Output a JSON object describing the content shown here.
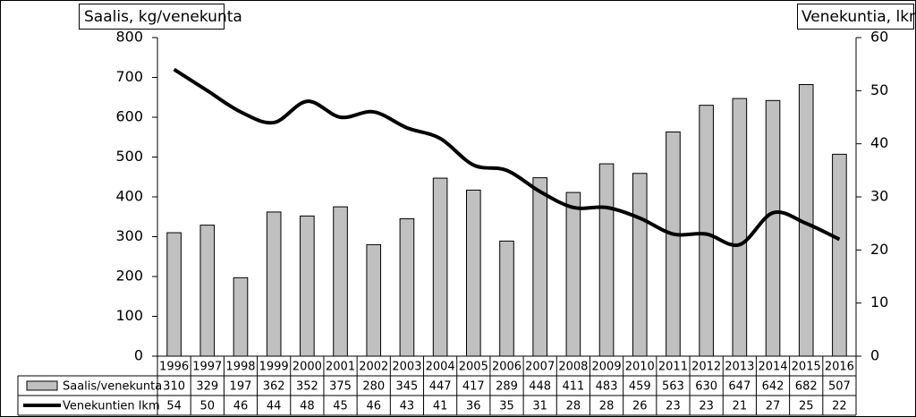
{
  "chart_data": {
    "type": "bar",
    "y_label": "Saalis, kg/venekunta",
    "y2_label": "Venekuntia, lkm",
    "categories": [
      "1996",
      "1997",
      "1998",
      "1999",
      "2000",
      "2001",
      "2002",
      "2003",
      "2004",
      "2005",
      "2006",
      "2007",
      "2008",
      "2009",
      "2010",
      "2011",
      "2012",
      "2013",
      "2014",
      "2015",
      "2016"
    ],
    "series": [
      {
        "name": "Saalis/venekunta",
        "color": "#c0c0c0",
        "type": "bar",
        "values": [
          310,
          329,
          197,
          362,
          352,
          375,
          280,
          345,
          447,
          417,
          289,
          448,
          411,
          483,
          459,
          563,
          630,
          647,
          642,
          682,
          507
        ]
      },
      {
        "name": "Venekuntien lkm",
        "color": "#000000",
        "type": "line",
        "axis": "y2",
        "values": [
          54,
          50,
          46,
          44,
          48,
          45,
          46,
          43,
          41,
          36,
          35,
          31,
          28,
          28,
          26,
          23,
          23,
          21,
          27,
          25,
          22
        ]
      }
    ],
    "ylim": [
      0,
      800
    ],
    "yticks": [
      0,
      100,
      200,
      300,
      400,
      500,
      600,
      700,
      800
    ],
    "y2lim": [
      0,
      60
    ],
    "y2ticks": [
      0,
      10,
      20,
      30,
      40,
      50,
      60
    ],
    "grid": false
  }
}
